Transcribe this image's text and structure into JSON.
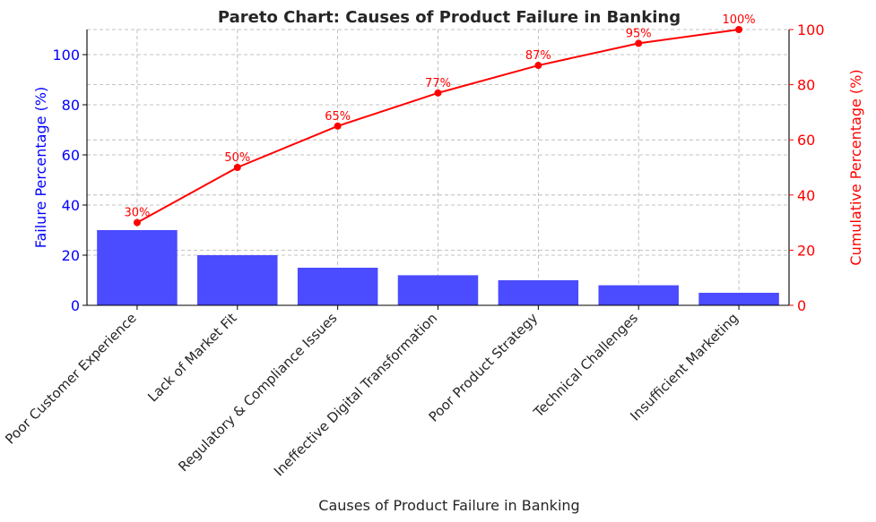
{
  "chart_data": {
    "type": "bar",
    "title": "Pareto Chart: Causes of Product Failure in Banking",
    "xlabel": "Causes of Product Failure in Banking",
    "ylabel": "Failure Percentage (%)",
    "y2label": "Cumulative Percentage (%)",
    "categories": [
      "Poor Customer Experience",
      "Lack of Market Fit",
      "Regulatory & Compliance Issues",
      "Ineffective Digital Transformation",
      "Poor Product Strategy",
      "Technical Challenges",
      "Insufficient Marketing"
    ],
    "series": [
      {
        "type": "bar",
        "axis": "left",
        "values": [
          30,
          20,
          15,
          12,
          10,
          8,
          5
        ]
      },
      {
        "type": "line",
        "axis": "right",
        "values": [
          30,
          50,
          65,
          77,
          87,
          95,
          100
        ],
        "labels": [
          "30%",
          "50%",
          "65%",
          "77%",
          "87%",
          "95%",
          "100%"
        ]
      }
    ],
    "ylim": [
      0,
      110
    ],
    "y2lim": [
      0,
      100
    ],
    "yticks": [
      "0",
      "20",
      "40",
      "60",
      "80",
      "100"
    ],
    "y2ticks": [
      "0",
      "20",
      "40",
      "60",
      "80",
      "100"
    ],
    "grid": true,
    "colors": {
      "bars": "#4b4bff",
      "line": "#ff0000",
      "left_axis": "#0000ff",
      "right_axis": "#ff0000"
    }
  }
}
